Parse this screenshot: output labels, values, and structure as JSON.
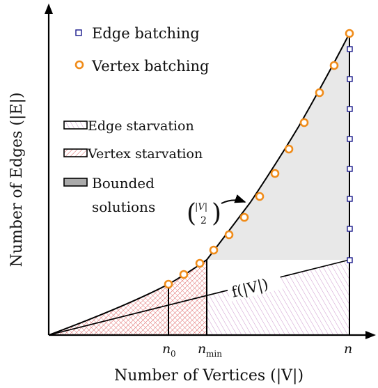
{
  "axes": {
    "x_label": "Number of Vertices (|V|)",
    "y_label": "Number of Edges (|E|)",
    "x_ticks": [
      "n",
      "n_min",
      "n"
    ]
  },
  "tick_labels": {
    "n0": "n",
    "n0_sub": "0",
    "nmin": "n",
    "nmin_sub": "min",
    "n": "n"
  },
  "legend": {
    "edge_batching": "Edge batching",
    "vertex_batching": "Vertex batching",
    "edge_starvation": "Edge starvation",
    "vertex_starvation": "Vertex starvation",
    "bounded_line1": "Bounded",
    "bounded_line2": "solutions"
  },
  "annotations": {
    "binom_top": "|V|",
    "binom_bottom": "2",
    "f_label": "f(|V|)"
  },
  "colors": {
    "edge_batching_marker": "#1a1a8c",
    "vertex_batching_marker": "#f08c1a",
    "edge_starvation_hatch": "#c78ac7",
    "vertex_starvation_hatch": "#d94a4a",
    "bounded_fill": "#e8e8e8"
  }
}
